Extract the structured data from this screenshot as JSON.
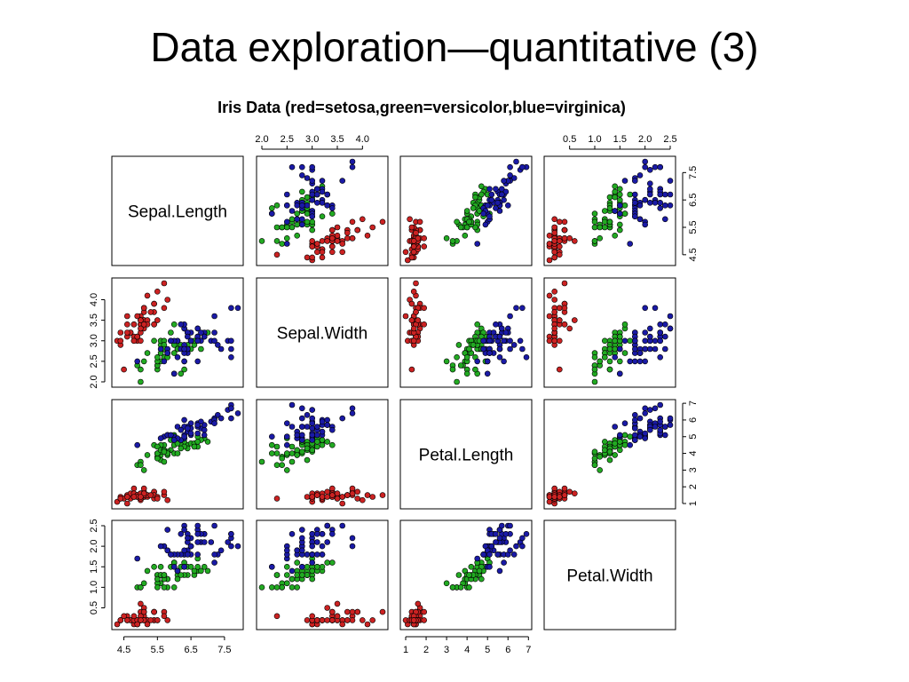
{
  "slide": {
    "title": "Data exploration—quantitative (3)"
  },
  "chart_data": {
    "type": "scatter",
    "subtype": "scatterplot-matrix",
    "title": "Iris Data (red=setosa,green=versicolor,blue=virginica)",
    "variables": [
      "Sepal.Length",
      "Sepal.Width",
      "Petal.Length",
      "Petal.Width"
    ],
    "ranges": [
      [
        4.3,
        7.9
      ],
      [
        2.0,
        4.4
      ],
      [
        1.0,
        6.9
      ],
      [
        0.1,
        2.5
      ]
    ],
    "ticks": [
      [
        "4.5",
        "5.5",
        "6.5",
        "7.5"
      ],
      [
        "2.0",
        "2.5",
        "3.0",
        "3.5",
        "4.0"
      ],
      [
        "1",
        "2",
        "3",
        "4",
        "5",
        "6",
        "7"
      ],
      [
        "0.5",
        "1.0",
        "1.5",
        "2.0",
        "2.5"
      ]
    ],
    "axes": {
      "top": [
        {
          "variable": "Sepal.Width",
          "ticks": [
            "2.0",
            "2.5",
            "3.0",
            "3.5",
            "4.0"
          ]
        },
        {
          "variable": "Petal.Width",
          "ticks": [
            "0.5",
            "1.0",
            "1.5",
            "2.0",
            "2.5"
          ]
        }
      ],
      "bottom": [
        {
          "variable": "Sepal.Length",
          "ticks": [
            "4.5",
            "5.5",
            "6.5",
            "7.5"
          ]
        },
        {
          "variable": "Petal.Length",
          "ticks": [
            "1",
            "2",
            "3",
            "4",
            "5",
            "6",
            "7"
          ]
        }
      ],
      "left": [
        {
          "variable": "Sepal.Width",
          "ticks": [
            "2.0",
            "2.5",
            "3.0",
            "3.5",
            "4.0"
          ]
        },
        {
          "variable": "Petal.Width",
          "ticks": [
            "0.5",
            "1.0",
            "1.5",
            "2.0",
            "2.5"
          ]
        }
      ],
      "right": [
        {
          "variable": "Sepal.Length",
          "ticks": [
            "4.5",
            "5.5",
            "6.5",
            "7.5"
          ]
        },
        {
          "variable": "Petal.Length",
          "ticks": [
            "1",
            "2",
            "3",
            "4",
            "5",
            "6",
            "7"
          ]
        }
      ]
    },
    "grid": false,
    "colors": {
      "setosa": "#cc2222",
      "versicolor": "#22aa22",
      "virginica": "#1a1aa6"
    },
    "series": [
      {
        "name": "setosa",
        "points": [
          [
            5.1,
            3.5,
            1.4,
            0.2
          ],
          [
            4.9,
            3.0,
            1.4,
            0.2
          ],
          [
            4.7,
            3.2,
            1.3,
            0.2
          ],
          [
            4.6,
            3.1,
            1.5,
            0.2
          ],
          [
            5.0,
            3.6,
            1.4,
            0.2
          ],
          [
            5.4,
            3.9,
            1.7,
            0.4
          ],
          [
            4.6,
            3.4,
            1.4,
            0.3
          ],
          [
            5.0,
            3.4,
            1.5,
            0.2
          ],
          [
            4.4,
            2.9,
            1.4,
            0.2
          ],
          [
            4.9,
            3.1,
            1.5,
            0.1
          ],
          [
            5.4,
            3.7,
            1.5,
            0.2
          ],
          [
            4.8,
            3.4,
            1.6,
            0.2
          ],
          [
            4.8,
            3.0,
            1.4,
            0.1
          ],
          [
            4.3,
            3.0,
            1.1,
            0.1
          ],
          [
            5.8,
            4.0,
            1.2,
            0.2
          ],
          [
            5.7,
            4.4,
            1.5,
            0.4
          ],
          [
            5.4,
            3.9,
            1.3,
            0.4
          ],
          [
            5.1,
            3.5,
            1.4,
            0.3
          ],
          [
            5.7,
            3.8,
            1.7,
            0.3
          ],
          [
            5.1,
            3.8,
            1.5,
            0.3
          ],
          [
            5.4,
            3.4,
            1.7,
            0.2
          ],
          [
            5.1,
            3.7,
            1.5,
            0.4
          ],
          [
            4.6,
            3.6,
            1.0,
            0.2
          ],
          [
            5.1,
            3.3,
            1.7,
            0.5
          ],
          [
            4.8,
            3.4,
            1.9,
            0.2
          ],
          [
            5.0,
            3.0,
            1.6,
            0.2
          ],
          [
            5.0,
            3.4,
            1.6,
            0.4
          ],
          [
            5.2,
            3.5,
            1.5,
            0.2
          ],
          [
            5.2,
            3.4,
            1.4,
            0.2
          ],
          [
            4.7,
            3.2,
            1.6,
            0.2
          ],
          [
            4.8,
            3.1,
            1.6,
            0.2
          ],
          [
            5.4,
            3.4,
            1.5,
            0.4
          ],
          [
            5.2,
            4.1,
            1.5,
            0.1
          ],
          [
            5.5,
            4.2,
            1.4,
            0.2
          ],
          [
            4.9,
            3.1,
            1.5,
            0.2
          ],
          [
            5.0,
            3.2,
            1.2,
            0.2
          ],
          [
            5.5,
            3.5,
            1.3,
            0.2
          ],
          [
            4.9,
            3.6,
            1.4,
            0.1
          ],
          [
            4.4,
            3.0,
            1.3,
            0.2
          ],
          [
            5.1,
            3.4,
            1.5,
            0.2
          ],
          [
            5.0,
            3.5,
            1.3,
            0.3
          ],
          [
            4.5,
            2.3,
            1.3,
            0.3
          ],
          [
            4.4,
            3.2,
            1.3,
            0.2
          ],
          [
            5.0,
            3.5,
            1.6,
            0.6
          ],
          [
            5.1,
            3.8,
            1.9,
            0.4
          ],
          [
            4.8,
            3.0,
            1.4,
            0.3
          ],
          [
            5.1,
            3.8,
            1.6,
            0.2
          ],
          [
            4.6,
            3.2,
            1.4,
            0.2
          ],
          [
            5.3,
            3.7,
            1.5,
            0.2
          ],
          [
            5.0,
            3.3,
            1.4,
            0.2
          ]
        ]
      },
      {
        "name": "versicolor",
        "points": [
          [
            7.0,
            3.2,
            4.7,
            1.4
          ],
          [
            6.4,
            3.2,
            4.5,
            1.5
          ],
          [
            6.9,
            3.1,
            4.9,
            1.5
          ],
          [
            5.5,
            2.3,
            4.0,
            1.3
          ],
          [
            6.5,
            2.8,
            4.6,
            1.5
          ],
          [
            5.7,
            2.8,
            4.5,
            1.3
          ],
          [
            6.3,
            3.3,
            4.7,
            1.6
          ],
          [
            4.9,
            2.4,
            3.3,
            1.0
          ],
          [
            6.6,
            2.9,
            4.6,
            1.3
          ],
          [
            5.2,
            2.7,
            3.9,
            1.4
          ],
          [
            5.0,
            2.0,
            3.5,
            1.0
          ],
          [
            5.9,
            3.0,
            4.2,
            1.5
          ],
          [
            6.0,
            2.2,
            4.0,
            1.0
          ],
          [
            6.1,
            2.9,
            4.7,
            1.4
          ],
          [
            5.6,
            2.9,
            3.6,
            1.3
          ],
          [
            6.7,
            3.1,
            4.4,
            1.4
          ],
          [
            5.6,
            3.0,
            4.5,
            1.5
          ],
          [
            5.8,
            2.7,
            4.1,
            1.0
          ],
          [
            6.2,
            2.2,
            4.5,
            1.5
          ],
          [
            5.6,
            2.5,
            3.9,
            1.1
          ],
          [
            5.9,
            3.2,
            4.8,
            1.8
          ],
          [
            6.1,
            2.8,
            4.0,
            1.3
          ],
          [
            6.3,
            2.5,
            4.9,
            1.5
          ],
          [
            6.1,
            2.8,
            4.7,
            1.2
          ],
          [
            6.4,
            2.9,
            4.3,
            1.3
          ],
          [
            6.6,
            3.0,
            4.4,
            1.4
          ],
          [
            6.8,
            2.8,
            4.8,
            1.4
          ],
          [
            6.7,
            3.0,
            5.0,
            1.7
          ],
          [
            6.0,
            2.9,
            4.5,
            1.5
          ],
          [
            5.7,
            2.6,
            3.5,
            1.0
          ],
          [
            5.5,
            2.4,
            3.8,
            1.1
          ],
          [
            5.5,
            2.4,
            3.7,
            1.0
          ],
          [
            5.8,
            2.7,
            3.9,
            1.2
          ],
          [
            6.0,
            2.7,
            5.1,
            1.6
          ],
          [
            5.4,
            3.0,
            4.5,
            1.5
          ],
          [
            6.0,
            3.4,
            4.5,
            1.6
          ],
          [
            6.7,
            3.1,
            4.7,
            1.5
          ],
          [
            6.3,
            2.3,
            4.4,
            1.3
          ],
          [
            5.6,
            3.0,
            4.1,
            1.3
          ],
          [
            5.5,
            2.5,
            4.0,
            1.3
          ],
          [
            5.5,
            2.6,
            4.4,
            1.2
          ],
          [
            6.1,
            3.0,
            4.6,
            1.4
          ],
          [
            5.8,
            2.6,
            4.0,
            1.2
          ],
          [
            5.0,
            2.3,
            3.3,
            1.0
          ],
          [
            5.6,
            2.7,
            4.2,
            1.3
          ],
          [
            5.7,
            3.0,
            4.2,
            1.2
          ],
          [
            5.7,
            2.9,
            4.2,
            1.3
          ],
          [
            6.2,
            2.9,
            4.3,
            1.3
          ],
          [
            5.1,
            2.5,
            3.0,
            1.1
          ],
          [
            5.7,
            2.8,
            4.1,
            1.3
          ]
        ]
      },
      {
        "name": "virginica",
        "points": [
          [
            6.3,
            3.3,
            6.0,
            2.5
          ],
          [
            5.8,
            2.7,
            5.1,
            1.9
          ],
          [
            7.1,
            3.0,
            5.9,
            2.1
          ],
          [
            6.3,
            2.9,
            5.6,
            1.8
          ],
          [
            6.5,
            3.0,
            5.8,
            2.2
          ],
          [
            7.6,
            3.0,
            6.6,
            2.1
          ],
          [
            4.9,
            2.5,
            4.5,
            1.7
          ],
          [
            7.3,
            2.9,
            6.3,
            1.8
          ],
          [
            6.7,
            2.5,
            5.8,
            1.8
          ],
          [
            7.2,
            3.6,
            6.1,
            2.5
          ],
          [
            6.5,
            3.2,
            5.1,
            2.0
          ],
          [
            6.4,
            2.7,
            5.3,
            1.9
          ],
          [
            6.8,
            3.0,
            5.5,
            2.1
          ],
          [
            5.7,
            2.5,
            5.0,
            2.0
          ],
          [
            5.8,
            2.8,
            5.1,
            2.4
          ],
          [
            6.4,
            3.2,
            5.3,
            2.3
          ],
          [
            6.5,
            3.0,
            5.5,
            1.8
          ],
          [
            7.7,
            3.8,
            6.7,
            2.2
          ],
          [
            7.7,
            2.6,
            6.9,
            2.3
          ],
          [
            6.0,
            2.2,
            5.0,
            1.5
          ],
          [
            6.9,
            3.2,
            5.7,
            2.3
          ],
          [
            5.6,
            2.8,
            4.9,
            2.0
          ],
          [
            7.7,
            2.8,
            6.7,
            2.0
          ],
          [
            6.3,
            2.7,
            4.9,
            1.8
          ],
          [
            6.7,
            3.3,
            5.7,
            2.1
          ],
          [
            7.2,
            3.2,
            6.0,
            1.8
          ],
          [
            6.2,
            2.8,
            4.8,
            1.8
          ],
          [
            6.1,
            3.0,
            4.9,
            1.8
          ],
          [
            6.4,
            2.8,
            5.6,
            2.1
          ],
          [
            7.2,
            3.0,
            5.8,
            1.6
          ],
          [
            7.4,
            2.8,
            6.1,
            1.9
          ],
          [
            7.9,
            3.8,
            6.4,
            2.0
          ],
          [
            6.4,
            2.8,
            5.6,
            2.2
          ],
          [
            6.3,
            2.8,
            5.1,
            1.5
          ],
          [
            6.1,
            2.6,
            5.6,
            1.4
          ],
          [
            7.7,
            3.0,
            6.1,
            2.3
          ],
          [
            6.3,
            3.4,
            5.6,
            2.4
          ],
          [
            6.4,
            3.1,
            5.5,
            1.8
          ],
          [
            6.0,
            3.0,
            4.8,
            1.8
          ],
          [
            6.9,
            3.1,
            5.4,
            2.1
          ],
          [
            6.7,
            3.1,
            5.6,
            2.4
          ],
          [
            6.9,
            3.1,
            5.1,
            2.3
          ],
          [
            5.8,
            2.7,
            5.1,
            1.9
          ],
          [
            6.8,
            3.2,
            5.9,
            2.3
          ],
          [
            6.7,
            3.3,
            5.7,
            2.5
          ],
          [
            6.7,
            3.0,
            5.2,
            2.3
          ],
          [
            6.3,
            2.5,
            5.0,
            1.9
          ],
          [
            6.5,
            3.0,
            5.2,
            2.0
          ],
          [
            6.2,
            3.4,
            5.4,
            2.3
          ],
          [
            5.9,
            3.0,
            5.1,
            1.8
          ]
        ]
      }
    ]
  }
}
